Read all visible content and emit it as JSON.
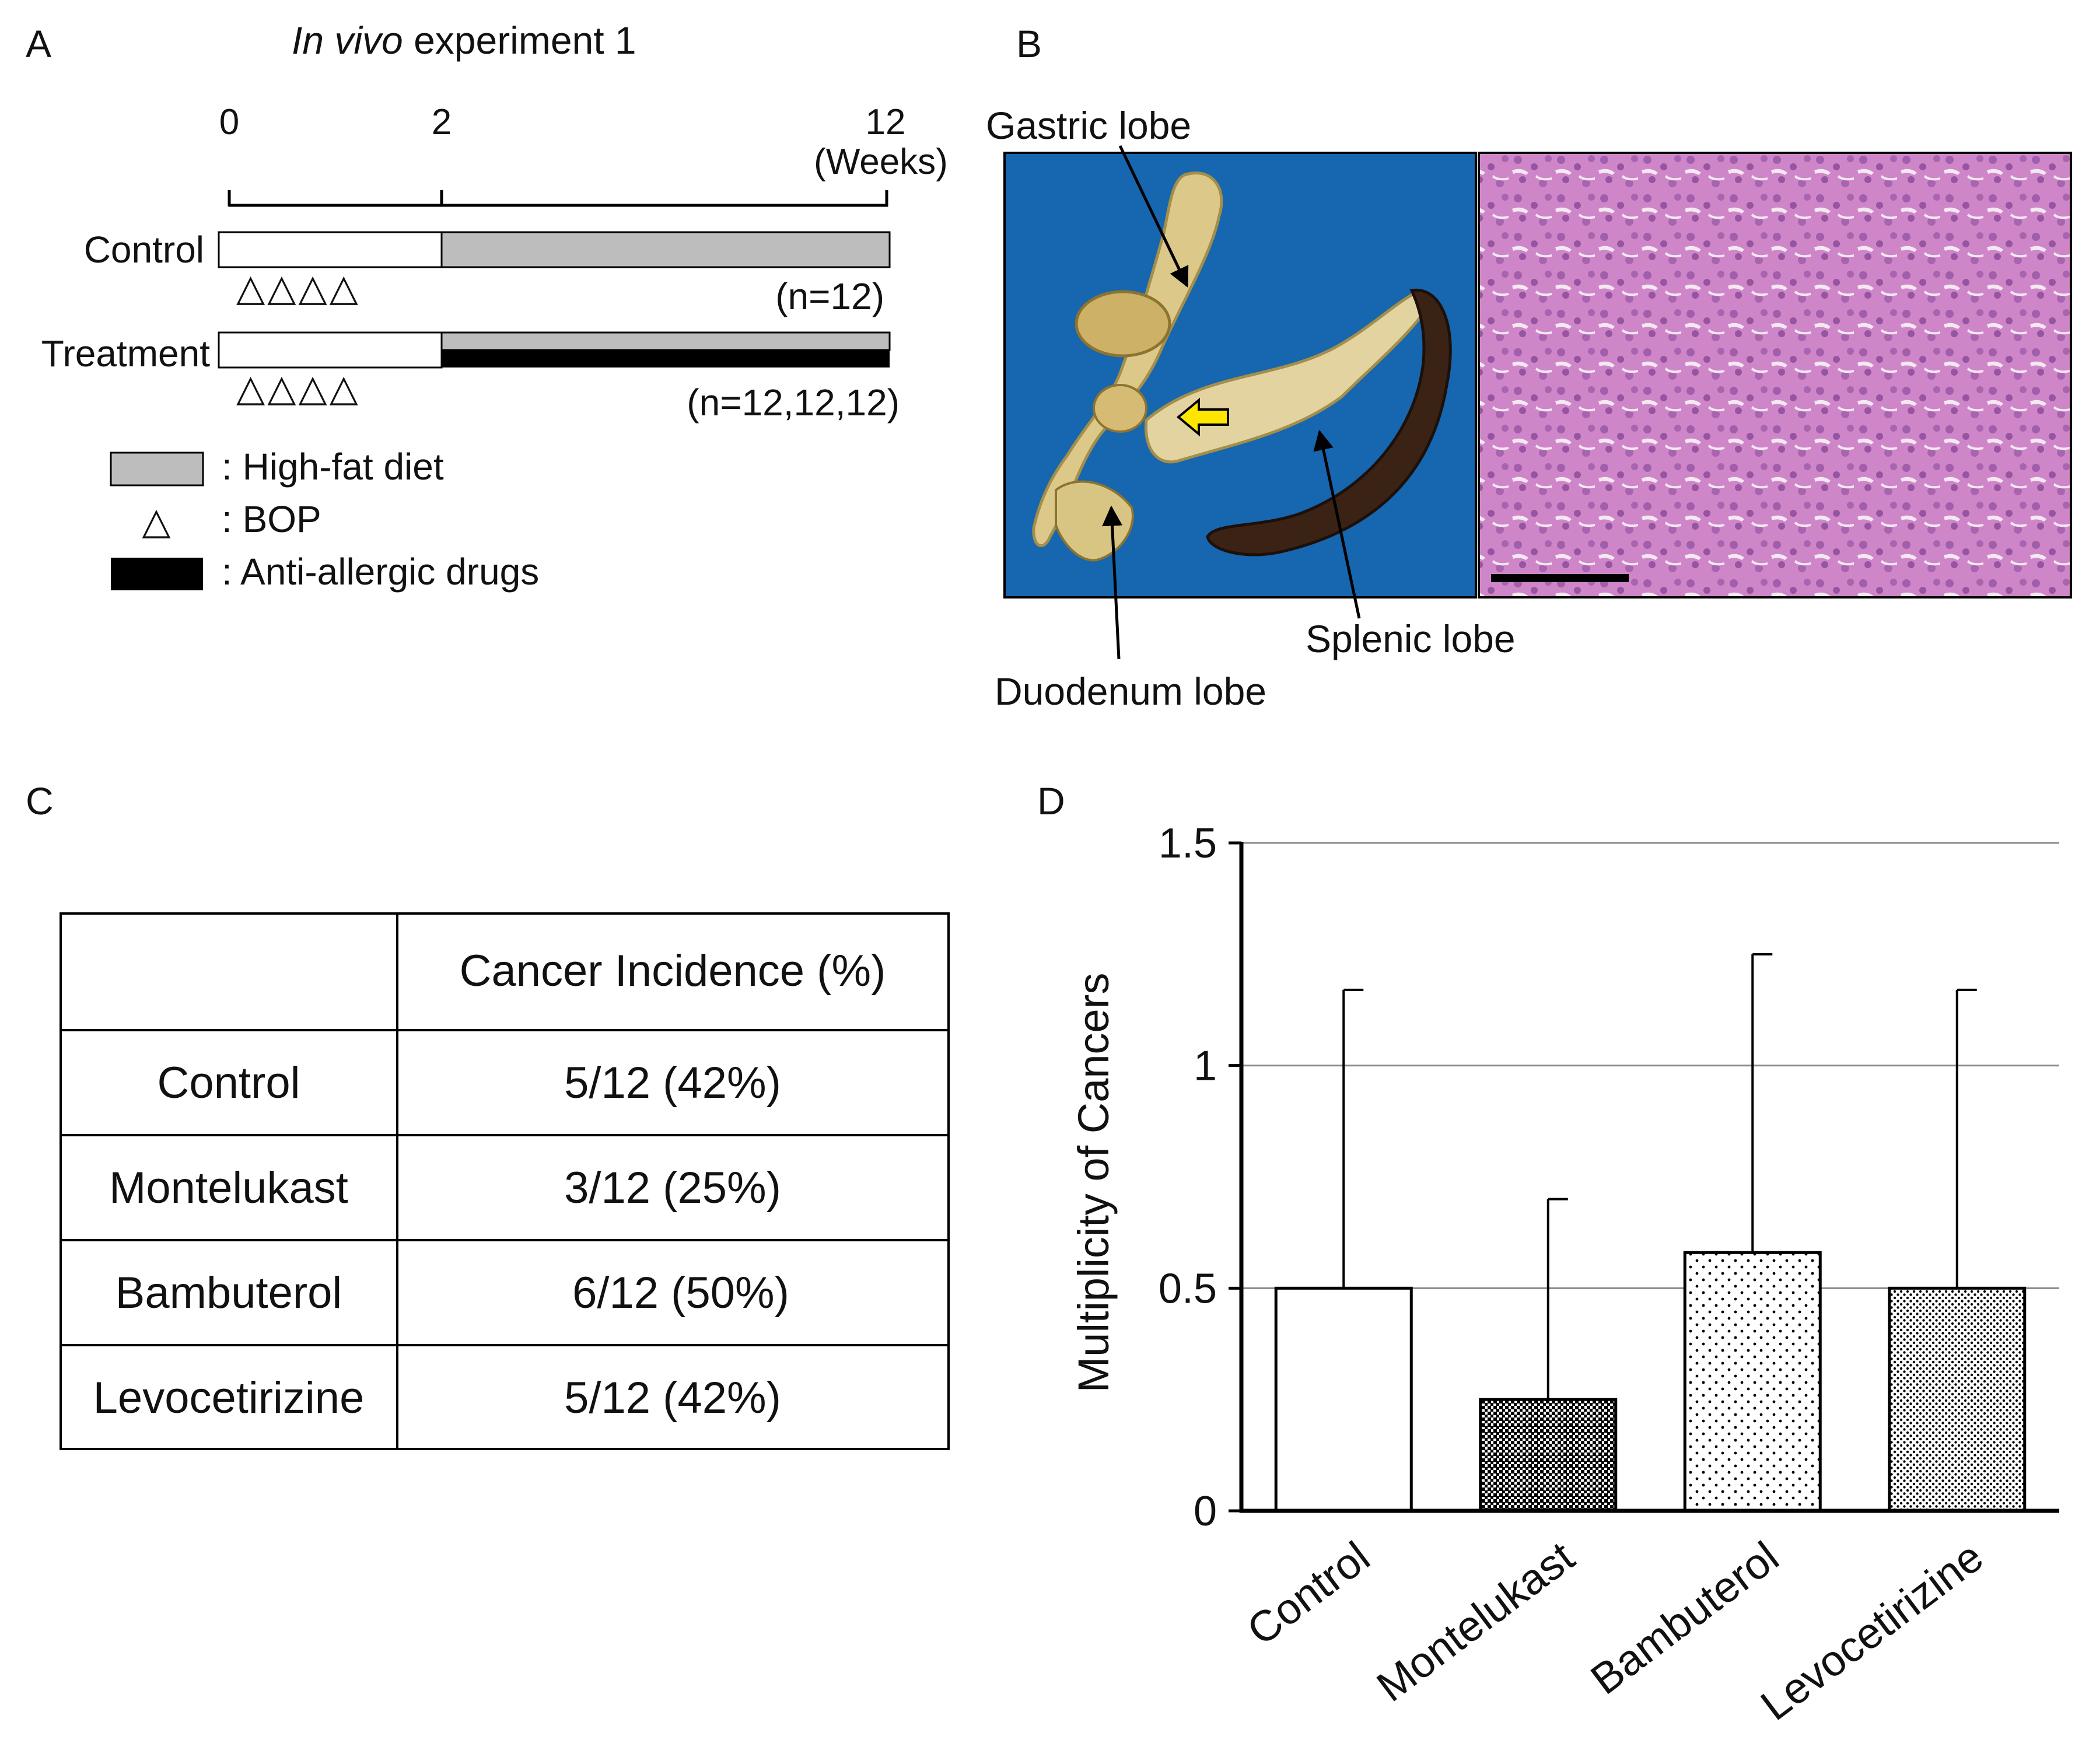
{
  "panel_labels": {
    "a": "A",
    "b": "B",
    "c": "C",
    "d": "D"
  },
  "panel_a": {
    "title_italic": "In vivo",
    "title_rest": " experiment 1",
    "timeline_ticks": [
      "0",
      "2",
      "12"
    ],
    "timeline_unit": "(Weeks)",
    "groups": [
      {
        "label": "Control",
        "n_label": "(n=12)"
      },
      {
        "label": "Treatment",
        "n_label": "(n=12,12,12)"
      }
    ],
    "bop_marker": "△",
    "legend": {
      "high_fat": ": High-fat diet",
      "bop": ": BOP",
      "anti_allergic": ": Anti-allergic drugs"
    },
    "colors": {
      "high_fat": "#bdbdbd",
      "anti_allergic": "#000000",
      "vehicle": "#ffffff"
    }
  },
  "panel_b": {
    "labels": {
      "gastric": "Gastric lobe",
      "splenic": "Splenic lobe",
      "duodenum": "Duodenum lobe"
    },
    "colors": {
      "photo_background": "#1666b0",
      "arrow_marker": "#ffe600",
      "stain": "#c67dc0"
    }
  },
  "panel_c": {
    "header": [
      "",
      "Cancer Incidence (%)"
    ],
    "rows": [
      [
        "Control",
        "5/12 (42%)"
      ],
      [
        "Montelukast",
        "3/12 (25%)"
      ],
      [
        "Bambuterol",
        "6/12 (50%)"
      ],
      [
        "Levocetirizine",
        "5/12 (42%)"
      ]
    ]
  },
  "chart_data": {
    "type": "bar",
    "title": "",
    "xlabel": "",
    "ylabel": "Multiplicity of Cancers",
    "ylim": [
      0,
      1.5
    ],
    "yticks": [
      "0",
      "0.5",
      "1",
      "1.5"
    ],
    "grid": true,
    "categories": [
      "Control",
      "Montelukast",
      "Bambuterol",
      "Levocetirizine"
    ],
    "values": [
      0.5,
      0.25,
      0.58,
      0.5
    ],
    "error_upper": [
      1.17,
      0.7,
      1.25,
      1.17
    ],
    "fills": [
      "white",
      "dense-dark-dots",
      "sparse-dots",
      "fine-dots"
    ]
  }
}
